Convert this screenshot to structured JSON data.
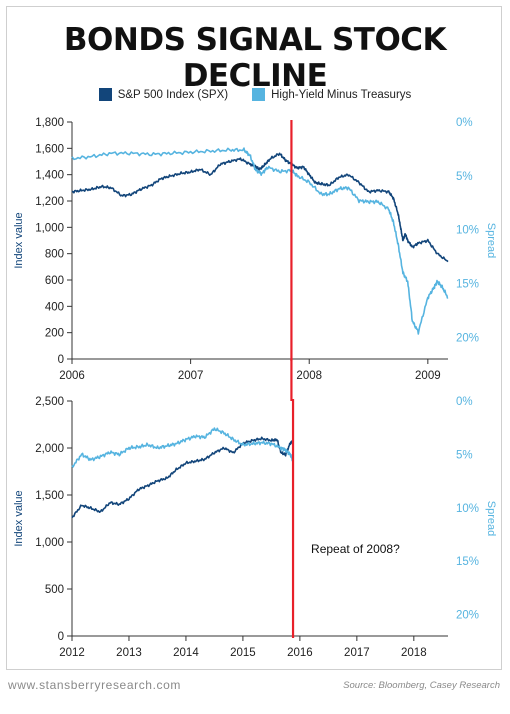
{
  "title": "BONDS SIGNAL STOCK DECLINE",
  "colors": {
    "spx": "#12457a",
    "hy": "#56b4e0",
    "marker": "#e8202a",
    "axis": "#333333"
  },
  "legend": {
    "spx": "S&P 500 Index (SPX)",
    "hy": "High-Yield Minus Treasurys"
  },
  "footer": {
    "website": "www.stansberryresearch.com",
    "source": "Source: Bloomberg, Casey Research"
  },
  "chart_data": [
    {
      "type": "line",
      "ylabel": "Index value",
      "y2label": "Spread",
      "xlim": [
        2006,
        2009.17
      ],
      "ylim": [
        0,
        1800
      ],
      "y2lim": [
        0,
        -22
      ],
      "x_ticks": [
        2006,
        2007,
        2008,
        2009
      ],
      "y_ticks": [
        0,
        200,
        400,
        600,
        800,
        "1,000",
        "1,200",
        "1,400",
        "1,600",
        "1,800"
      ],
      "y2_ticks": [
        "0%",
        "5%",
        "10%",
        "15%",
        "20%"
      ],
      "marker_x": 2007.85,
      "series": [
        {
          "name": "S&P 500 Index (SPX)",
          "axis": "left",
          "x": [
            2006.0,
            2006.08,
            2006.17,
            2006.25,
            2006.33,
            2006.42,
            2006.5,
            2006.58,
            2006.67,
            2006.75,
            2006.83,
            2006.92,
            2007.0,
            2007.08,
            2007.17,
            2007.25,
            2007.33,
            2007.42,
            2007.5,
            2007.55,
            2007.58,
            2007.62,
            2007.67,
            2007.75,
            2007.8,
            2007.85,
            2007.9,
            2007.95,
            2008.0,
            2008.05,
            2008.1,
            2008.17,
            2008.25,
            2008.33,
            2008.42,
            2008.5,
            2008.58,
            2008.67,
            2008.71,
            2008.75,
            2008.77,
            2008.79,
            2008.81,
            2008.83,
            2008.87,
            2008.92,
            2009.0,
            2009.08,
            2009.17
          ],
          "y": [
            1270,
            1280,
            1290,
            1310,
            1300,
            1240,
            1250,
            1290,
            1320,
            1370,
            1390,
            1410,
            1420,
            1440,
            1400,
            1480,
            1500,
            1520,
            1480,
            1460,
            1440,
            1470,
            1520,
            1560,
            1510,
            1480,
            1450,
            1460,
            1400,
            1340,
            1330,
            1320,
            1380,
            1400,
            1340,
            1270,
            1280,
            1270,
            1220,
            1100,
            1000,
            900,
            950,
            900,
            850,
            880,
            900,
            800,
            740
          ]
        },
        {
          "name": "High-Yield Minus Treasurys",
          "axis": "right",
          "x": [
            2006.0,
            2006.17,
            2006.33,
            2006.5,
            2006.67,
            2006.83,
            2007.0,
            2007.17,
            2007.33,
            2007.45,
            2007.5,
            2007.55,
            2007.6,
            2007.65,
            2007.75,
            2007.85,
            2007.9,
            2008.0,
            2008.1,
            2008.17,
            2008.25,
            2008.33,
            2008.42,
            2008.5,
            2008.58,
            2008.67,
            2008.71,
            2008.75,
            2008.79,
            2008.83,
            2008.87,
            2008.92,
            2009.0,
            2009.05,
            2009.08,
            2009.12,
            2009.17
          ],
          "y": [
            -3.4,
            -3.2,
            -2.9,
            -2.9,
            -3.0,
            -2.9,
            -2.8,
            -2.7,
            -2.6,
            -2.6,
            -3.1,
            -4.5,
            -4.8,
            -4.2,
            -4.6,
            -4.5,
            -5.0,
            -5.6,
            -6.7,
            -6.7,
            -6.2,
            -6.1,
            -7.3,
            -7.4,
            -7.4,
            -8.1,
            -9.3,
            -11.4,
            -14.0,
            -14.8,
            -18.5,
            -19.5,
            -16.3,
            -15.4,
            -14.8,
            -15.3,
            -16.3
          ]
        }
      ]
    },
    {
      "type": "line",
      "ylabel": "Index value",
      "y2label": "Spread",
      "xlim": [
        2012,
        2018.6
      ],
      "ylim": [
        0,
        2500
      ],
      "y2lim": [
        0,
        -22
      ],
      "x_ticks": [
        2012,
        2013,
        2014,
        2015,
        2016,
        2017,
        2018
      ],
      "y_ticks": [
        0,
        500,
        "1,000",
        "1,500",
        "2,000",
        "2,500"
      ],
      "y2_ticks": [
        "0%",
        "5%",
        "10%",
        "15%",
        "20%"
      ],
      "marker_x": 2015.88,
      "annotation": "Repeat of 2008?",
      "series": [
        {
          "name": "S&P 500 Index (SPX)",
          "axis": "left",
          "x": [
            2012.0,
            2012.17,
            2012.33,
            2012.5,
            2012.67,
            2012.83,
            2013.0,
            2013.17,
            2013.33,
            2013.5,
            2013.67,
            2013.83,
            2014.0,
            2014.17,
            2014.33,
            2014.5,
            2014.67,
            2014.83,
            2015.0,
            2015.17,
            2015.33,
            2015.5,
            2015.6,
            2015.67,
            2015.75,
            2015.83,
            2015.88
          ],
          "y": [
            1260,
            1390,
            1360,
            1320,
            1420,
            1400,
            1460,
            1560,
            1600,
            1650,
            1680,
            1770,
            1840,
            1860,
            1880,
            1950,
            2000,
            1950,
            2050,
            2080,
            2100,
            2080,
            2090,
            1950,
            1930,
            2050,
            2080
          ]
        },
        {
          "name": "High-Yield Minus Treasurys",
          "axis": "right",
          "x": [
            2012.0,
            2012.17,
            2012.33,
            2012.5,
            2012.67,
            2012.83,
            2013.0,
            2013.17,
            2013.33,
            2013.5,
            2013.67,
            2013.83,
            2014.0,
            2014.17,
            2014.33,
            2014.5,
            2014.67,
            2014.83,
            2015.0,
            2015.17,
            2015.33,
            2015.5,
            2015.67,
            2015.75,
            2015.83,
            2015.88
          ],
          "y": [
            -6.2,
            -5.0,
            -5.5,
            -5.2,
            -4.8,
            -5.0,
            -4.4,
            -4.3,
            -4.1,
            -4.4,
            -4.2,
            -4.0,
            -3.6,
            -3.3,
            -3.4,
            -2.6,
            -3.0,
            -3.6,
            -4.1,
            -4.0,
            -3.9,
            -4.0,
            -4.4,
            -4.6,
            -5.0,
            -5.6
          ]
        }
      ]
    }
  ]
}
